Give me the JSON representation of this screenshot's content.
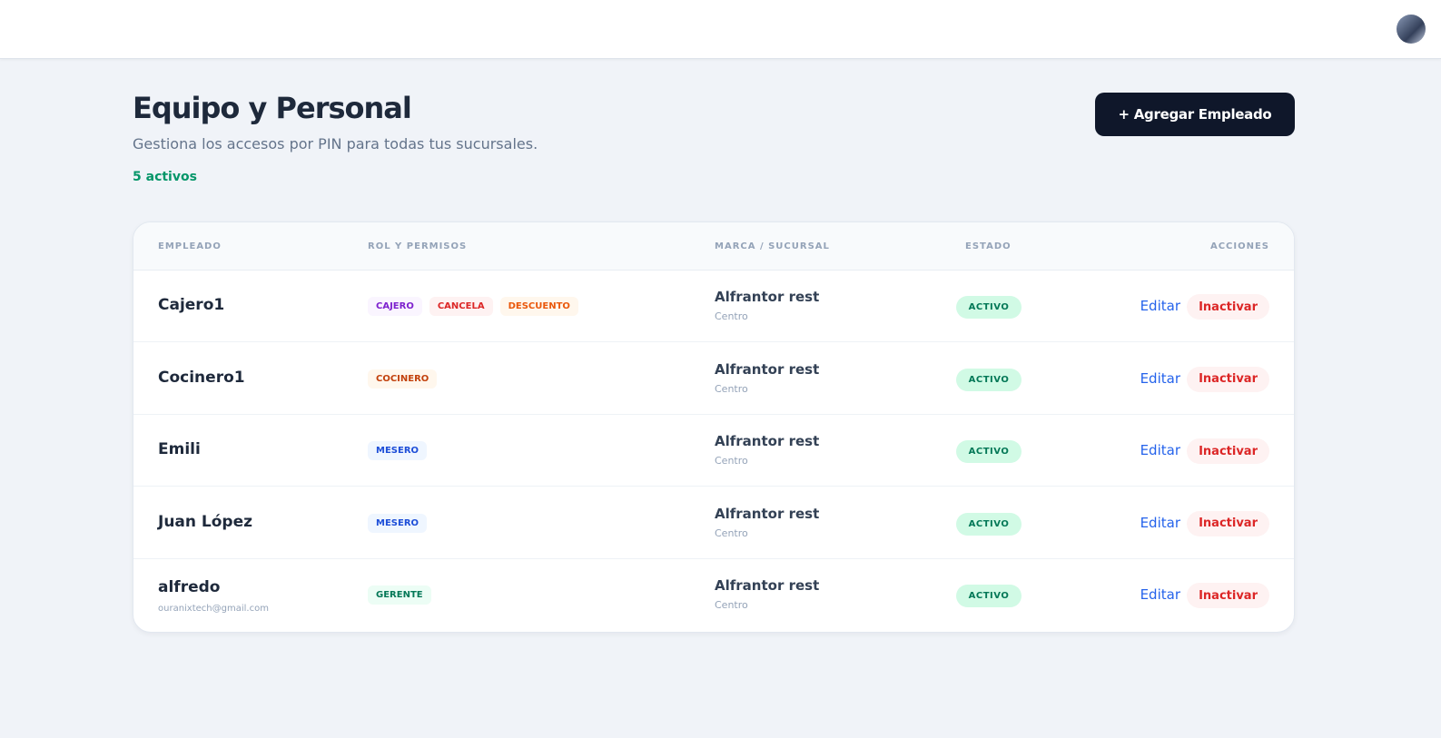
{
  "page": {
    "title": "Equipo y Personal",
    "subtitle": "Gestiona los accesos por PIN para todas tus sucursales.",
    "count": "5 activos",
    "add_button": "+ Agregar Empleado"
  },
  "table": {
    "headers": [
      "EMPLEADO",
      "ROL Y PERMISOS",
      "MARCA / SUCURSAL",
      "ESTADO",
      "ACCIONES"
    ],
    "rows": [
      {
        "name": "Cajero1",
        "roles": [
          {
            "label": "CAJERO",
            "color": "#7e22ce",
            "bg": "#faf5ff"
          },
          {
            "label": "CANCELA",
            "color": "#dc2626",
            "bg": "#fef2f2"
          },
          {
            "label": "DESCUENTO",
            "color": "#ea580c",
            "bg": "#fff7ed"
          }
        ],
        "brand": "Alfrantor rest",
        "branch": "Centro",
        "status": "ACTIVO",
        "actions": [
          "Editar",
          "Inactivar"
        ]
      },
      {
        "name": "Cocinero1",
        "roles": [
          {
            "label": "COCINERO",
            "color": "#c2410c",
            "bg": "#fff7ed"
          }
        ],
        "brand": "Alfrantor rest",
        "branch": "Centro",
        "status": "ACTIVO",
        "actions": [
          "Editar",
          "Inactivar"
        ]
      },
      {
        "name": "Emili",
        "roles": [
          {
            "label": "MESERO",
            "color": "#1d4ed8",
            "bg": "#eff6ff"
          }
        ],
        "brand": "Alfrantor rest",
        "branch": "Centro",
        "status": "ACTIVO",
        "actions": [
          "Editar",
          "Inactivar"
        ]
      },
      {
        "name": "Juan López",
        "roles": [
          {
            "label": "MESERO",
            "color": "#1d4ed8",
            "bg": "#eff6ff"
          }
        ],
        "brand": "Alfrantor rest",
        "branch": "Centro",
        "status": "ACTIVO",
        "actions": [
          "Editar",
          "Inactivar"
        ]
      },
      {
        "name": "alfredo",
        "email": "ouranixtech@gmail.com",
        "roles": [
          {
            "label": "GERENTE",
            "color": "#047857",
            "bg": "#ecfdf5"
          }
        ],
        "brand": "Alfrantor rest",
        "branch": "Centro",
        "status": "ACTIVO",
        "actions": [
          "Editar",
          "Inactivar"
        ]
      }
    ]
  }
}
